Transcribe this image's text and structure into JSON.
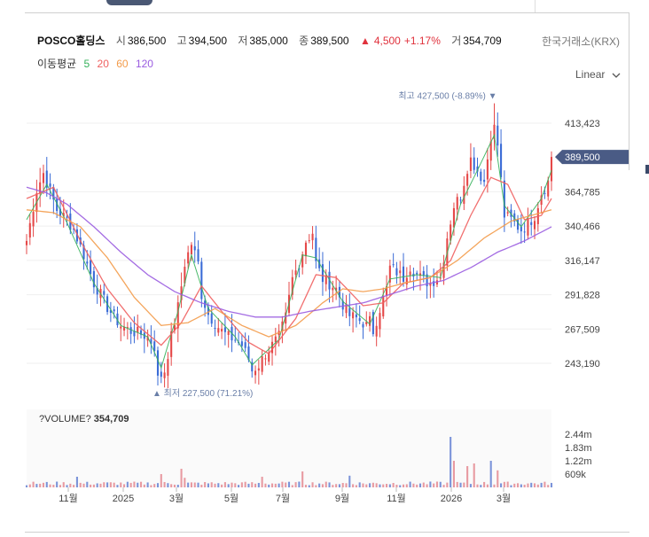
{
  "header": {
    "name": "POSCO홀딩스",
    "open_label": "시",
    "open": "386,500",
    "high_label": "고",
    "high": "394,500",
    "low_label": "저",
    "low": "385,000",
    "close_label": "종",
    "close": "389,500",
    "change_arrow": "▲",
    "change": "4,500",
    "change_pct": "+1.17%",
    "volume_label": "거",
    "volume": "354,709",
    "exchange": "한국거래소(KRX)"
  },
  "ma_legend": {
    "title": "이동평균",
    "items": [
      {
        "label": "5",
        "color": "#35b15a"
      },
      {
        "label": "20",
        "color": "#ef5f5f"
      },
      {
        "label": "60",
        "color": "#f39b4a"
      },
      {
        "label": "120",
        "color": "#9a5ce0"
      }
    ]
  },
  "scale_selector": {
    "label": "Linear",
    "icon": "chevron-down-icon"
  },
  "chart_data": {
    "type": "candlestick",
    "price_axis": {
      "ticks": [
        "413,423",
        "389,500",
        "364,785",
        "340,466",
        "316,147",
        "291,828",
        "267,509",
        "243,190"
      ],
      "tick_values": [
        413423,
        364785,
        340466,
        316147,
        291828,
        267509,
        243190
      ],
      "range": [
        228000,
        428000
      ]
    },
    "current_price": {
      "label": "389,500",
      "value": 389500
    },
    "max_annotation": {
      "label": "최고 427,500 (-8.89%)",
      "arrow": "▼",
      "value": 427500
    },
    "min_annotation": {
      "label": "최저 227,500 (71.21%)",
      "arrow": "▲",
      "value": 227500
    },
    "volume_title": {
      "label": "?VOLUME?",
      "value": "354,709"
    },
    "volume_axis": {
      "ticks": [
        "2.44m",
        "1.83m",
        "1.22m",
        "609k"
      ],
      "tick_values": [
        2440000,
        1830000,
        1220000,
        609000
      ]
    },
    "time_axis": [
      "11월",
      "2025",
      "3월",
      "5월",
      "7월",
      "9월",
      "11월",
      "2026",
      "3월"
    ],
    "close_path": [
      [
        0,
        330000
      ],
      [
        3,
        366000
      ],
      [
        5,
        378000
      ],
      [
        7,
        365000
      ],
      [
        9,
        352000
      ],
      [
        12,
        345000
      ],
      [
        14,
        338000
      ],
      [
        17,
        320000
      ],
      [
        20,
        300000
      ],
      [
        22,
        292000
      ],
      [
        24,
        283000
      ],
      [
        26,
        276000
      ],
      [
        28,
        270000
      ],
      [
        31,
        266000
      ],
      [
        34,
        264000
      ],
      [
        36,
        262000
      ],
      [
        38,
        255000
      ],
      [
        39,
        232000
      ],
      [
        41,
        238000
      ],
      [
        43,
        262000
      ],
      [
        45,
        283000
      ],
      [
        46,
        298000
      ],
      [
        47,
        314000
      ],
      [
        49,
        328000
      ],
      [
        51,
        314000
      ],
      [
        52,
        292000
      ],
      [
        54,
        278000
      ],
      [
        56,
        272000
      ],
      [
        58,
        266000
      ],
      [
        60,
        262000
      ],
      [
        62,
        260000
      ],
      [
        64,
        256000
      ],
      [
        66,
        246000
      ],
      [
        67,
        238000
      ],
      [
        69,
        242000
      ],
      [
        71,
        250000
      ],
      [
        73,
        256000
      ],
      [
        75,
        262000
      ],
      [
        77,
        276000
      ],
      [
        79,
        303000
      ],
      [
        81,
        314000
      ],
      [
        83,
        330000
      ],
      [
        85,
        336000
      ],
      [
        86,
        314000
      ],
      [
        88,
        303000
      ],
      [
        90,
        300000
      ],
      [
        92,
        296000
      ],
      [
        94,
        285000
      ],
      [
        96,
        277000
      ],
      [
        98,
        275000
      ],
      [
        100,
        272000
      ],
      [
        101,
        270000
      ],
      [
        102,
        273000
      ],
      [
        103,
        266000
      ],
      [
        105,
        282000
      ],
      [
        107,
        296000
      ],
      [
        108,
        311000
      ],
      [
        110,
        308000
      ],
      [
        112,
        304000
      ],
      [
        114,
        312000
      ],
      [
        116,
        306000
      ],
      [
        118,
        302000
      ],
      [
        120,
        300000
      ],
      [
        122,
        304000
      ],
      [
        123,
        304000
      ],
      [
        125,
        333000
      ],
      [
        127,
        355000
      ],
      [
        129,
        362000
      ],
      [
        131,
        382000
      ],
      [
        132,
        388000
      ],
      [
        134,
        380000
      ],
      [
        136,
        372000
      ],
      [
        138,
        405000
      ],
      [
        139,
        410000
      ],
      [
        140,
        398000
      ],
      [
        142,
        348000
      ],
      [
        144,
        345000
      ],
      [
        146,
        340000
      ],
      [
        147,
        338000
      ],
      [
        149,
        342000
      ],
      [
        151,
        348000
      ],
      [
        153,
        364000
      ],
      [
        155,
        372000
      ],
      [
        156,
        386000
      ]
    ],
    "ma": {
      "5": [
        [
          0,
          345000
        ],
        [
          6,
          370000
        ],
        [
          12,
          343000
        ],
        [
          20,
          300000
        ],
        [
          28,
          270000
        ],
        [
          36,
          262000
        ],
        [
          40,
          240000
        ],
        [
          45,
          280000
        ],
        [
          49,
          320000
        ],
        [
          54,
          282000
        ],
        [
          62,
          262000
        ],
        [
          67,
          242000
        ],
        [
          75,
          260000
        ],
        [
          82,
          320000
        ],
        [
          86,
          318000
        ],
        [
          94,
          287000
        ],
        [
          102,
          271000
        ],
        [
          108,
          303000
        ],
        [
          116,
          306000
        ],
        [
          123,
          304000
        ],
        [
          129,
          356000
        ],
        [
          134,
          380000
        ],
        [
          139,
          405000
        ],
        [
          142,
          355000
        ],
        [
          147,
          340000
        ],
        [
          153,
          360000
        ],
        [
          156,
          380000
        ]
      ],
      "20": [
        [
          0,
          360000
        ],
        [
          8,
          368000
        ],
        [
          16,
          330000
        ],
        [
          24,
          296000
        ],
        [
          32,
          272000
        ],
        [
          40,
          256000
        ],
        [
          46,
          272000
        ],
        [
          52,
          298000
        ],
        [
          58,
          280000
        ],
        [
          66,
          258000
        ],
        [
          72,
          250000
        ],
        [
          80,
          275000
        ],
        [
          86,
          306000
        ],
        [
          92,
          304000
        ],
        [
          100,
          284000
        ],
        [
          106,
          286000
        ],
        [
          112,
          300000
        ],
        [
          120,
          304000
        ],
        [
          126,
          316000
        ],
        [
          132,
          348000
        ],
        [
          138,
          375000
        ],
        [
          143,
          370000
        ],
        [
          148,
          345000
        ],
        [
          153,
          348000
        ],
        [
          156,
          360000
        ]
      ],
      "60": [
        [
          0,
          352000
        ],
        [
          8,
          350000
        ],
        [
          16,
          340000
        ],
        [
          24,
          318000
        ],
        [
          32,
          290000
        ],
        [
          40,
          270000
        ],
        [
          48,
          272000
        ],
        [
          56,
          282000
        ],
        [
          64,
          270000
        ],
        [
          72,
          262000
        ],
        [
          80,
          270000
        ],
        [
          88,
          286000
        ],
        [
          94,
          296000
        ],
        [
          100,
          294000
        ],
        [
          106,
          296000
        ],
        [
          112,
          300000
        ],
        [
          120,
          304000
        ],
        [
          128,
          316000
        ],
        [
          136,
          332000
        ],
        [
          144,
          344000
        ],
        [
          150,
          348000
        ],
        [
          156,
          352000
        ]
      ],
      "120": [
        [
          0,
          368000
        ],
        [
          6,
          364000
        ],
        [
          12,
          356000
        ],
        [
          20,
          340000
        ],
        [
          28,
          322000
        ],
        [
          36,
          306000
        ],
        [
          44,
          294000
        ],
        [
          52,
          286000
        ],
        [
          60,
          280000
        ],
        [
          68,
          276000
        ],
        [
          76,
          276000
        ],
        [
          84,
          280000
        ],
        [
          92,
          283000
        ],
        [
          100,
          286000
        ],
        [
          108,
          292000
        ],
        [
          116,
          298000
        ],
        [
          124,
          302000
        ],
        [
          132,
          311000
        ],
        [
          140,
          322000
        ],
        [
          148,
          330000
        ],
        [
          156,
          340000
        ]
      ]
    },
    "volume_spikes": [
      [
        15,
        0.2
      ],
      [
        40,
        0.25
      ],
      [
        46,
        0.35
      ],
      [
        47,
        0.18
      ],
      [
        70,
        0.2
      ],
      [
        82,
        0.3
      ],
      [
        96,
        0.22
      ],
      [
        126,
        0.95
      ],
      [
        127,
        0.5
      ],
      [
        131,
        0.4
      ],
      [
        133,
        0.45
      ],
      [
        138,
        0.5
      ],
      [
        140,
        0.32
      ]
    ],
    "grid": true,
    "up_color": "#e54848",
    "down_color": "#3a6bd6"
  }
}
